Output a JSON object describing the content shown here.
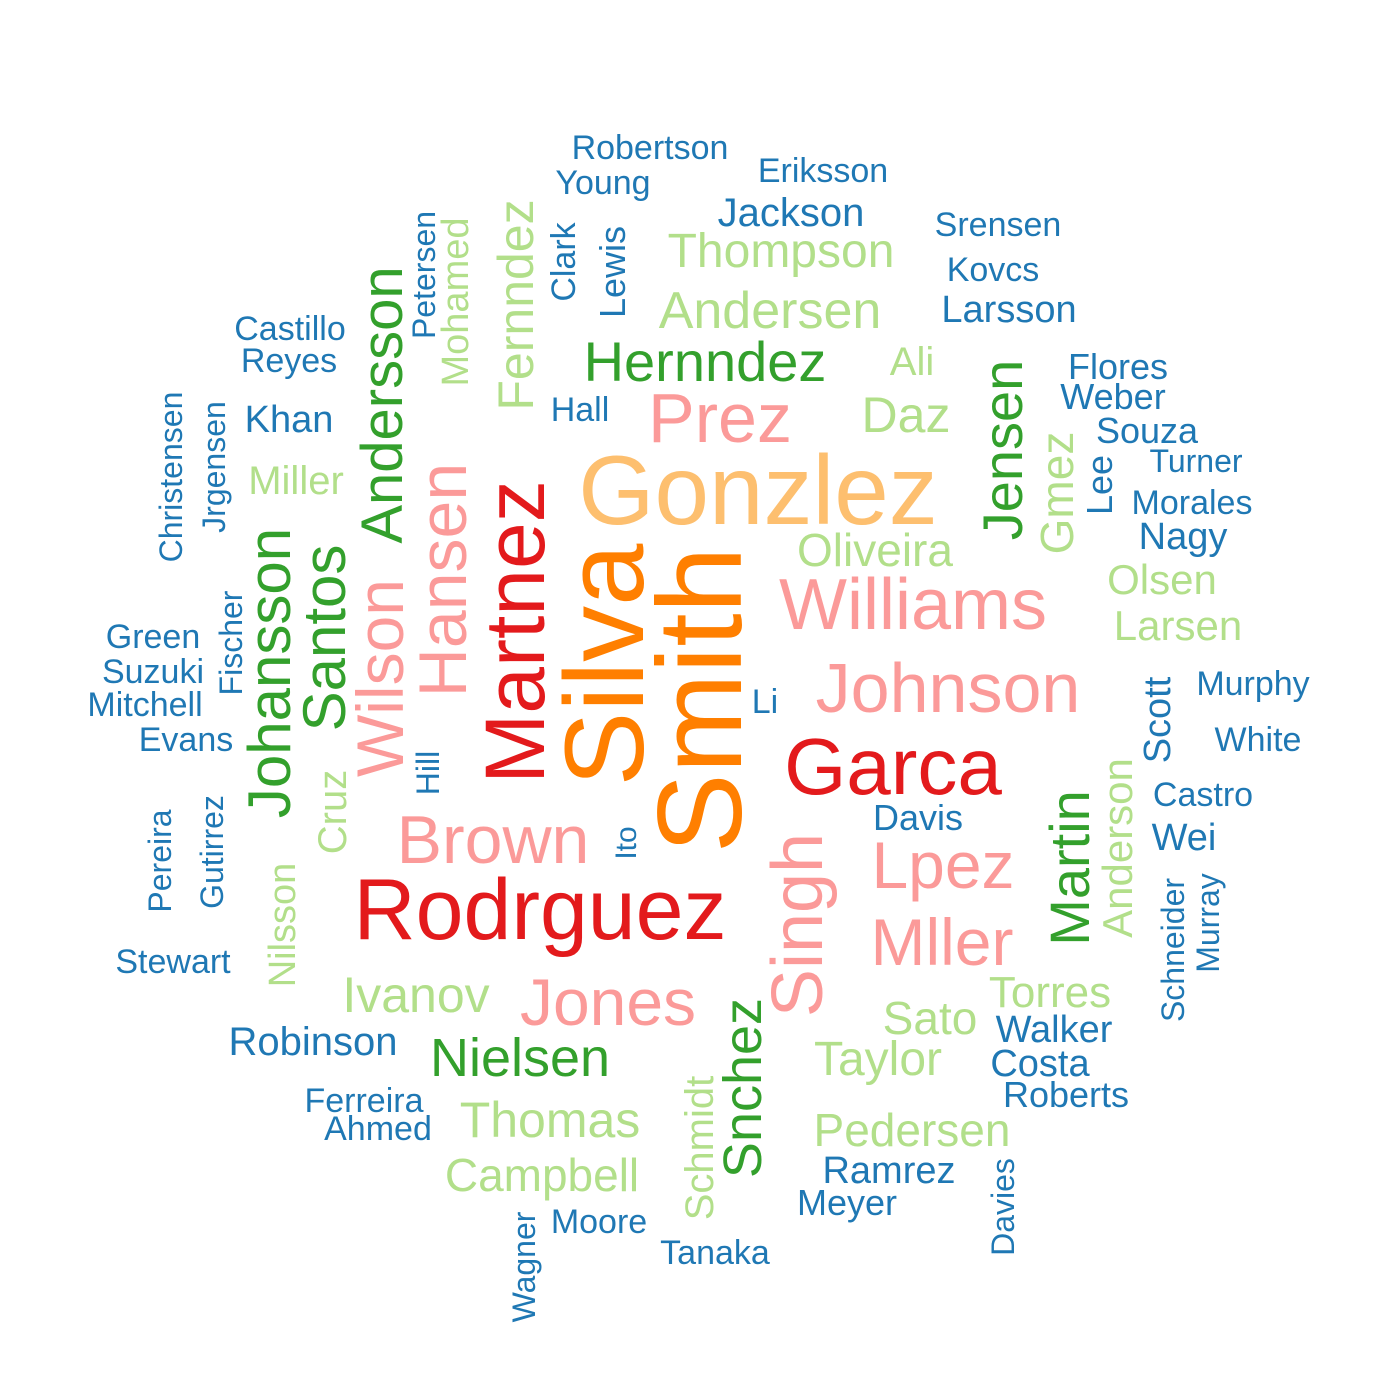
{
  "colors": {
    "dark_blue": "#1F78B4",
    "light_green": "#B2DF8A",
    "dark_green": "#33A02C",
    "pink": "#FB9A99",
    "red": "#E31A1C",
    "light_orange": "#FDBF6F",
    "orange": "#FF7F00"
  },
  "words": [
    {
      "text": "Smith",
      "color": "orange",
      "size": 120,
      "rotated": true
    },
    {
      "text": "Silva",
      "color": "orange",
      "size": 112,
      "rotated": true
    },
    {
      "text": "Gonzlez",
      "color": "light_orange",
      "size": 98,
      "rotated": false
    },
    {
      "text": "Rodrguez",
      "color": "red",
      "size": 86,
      "rotated": false
    },
    {
      "text": "Martnez",
      "color": "red",
      "size": 84,
      "rotated": true
    },
    {
      "text": "Garca",
      "color": "red",
      "size": 80,
      "rotated": false
    },
    {
      "text": "Williams",
      "color": "pink",
      "size": 72,
      "rotated": false
    },
    {
      "text": "Johnson",
      "color": "pink",
      "size": 70,
      "rotated": false
    },
    {
      "text": "Singh",
      "color": "pink",
      "size": 72,
      "rotated": true
    },
    {
      "text": "Brown",
      "color": "pink",
      "size": 68,
      "rotated": false
    },
    {
      "text": "Hansen",
      "color": "pink",
      "size": 68,
      "rotated": true
    },
    {
      "text": "Wilson",
      "color": "pink",
      "size": 66,
      "rotated": true
    },
    {
      "text": "Prez",
      "color": "pink",
      "size": 70,
      "rotated": false
    },
    {
      "text": "Jones",
      "color": "pink",
      "size": 66,
      "rotated": false
    },
    {
      "text": "Lpez",
      "color": "pink",
      "size": 66,
      "rotated": false
    },
    {
      "text": "Mller",
      "color": "pink",
      "size": 66,
      "rotated": false
    },
    {
      "text": "Johansson",
      "color": "dark_green",
      "size": 60,
      "rotated": true
    },
    {
      "text": "Santos",
      "color": "dark_green",
      "size": 60,
      "rotated": true
    },
    {
      "text": "Andersson",
      "color": "dark_green",
      "size": 58,
      "rotated": true
    },
    {
      "text": "Hernndez",
      "color": "dark_green",
      "size": 56,
      "rotated": false
    },
    {
      "text": "Jensen",
      "color": "dark_green",
      "size": 56,
      "rotated": true
    },
    {
      "text": "Martin",
      "color": "dark_green",
      "size": 56,
      "rotated": true
    },
    {
      "text": "Nielsen",
      "color": "dark_green",
      "size": 54,
      "rotated": false
    },
    {
      "text": "Snchez",
      "color": "dark_green",
      "size": 54,
      "rotated": true
    },
    {
      "text": "Andersen",
      "color": "light_green",
      "size": 52,
      "rotated": false
    },
    {
      "text": "Thompson",
      "color": "light_green",
      "size": 48,
      "rotated": false
    },
    {
      "text": "Fernndez",
      "color": "light_green",
      "size": 50,
      "rotated": true
    },
    {
      "text": "Thomas",
      "color": "light_green",
      "size": 50,
      "rotated": false
    },
    {
      "text": "Ivanov",
      "color": "light_green",
      "size": 50,
      "rotated": false
    },
    {
      "text": "Daz",
      "color": "light_green",
      "size": 50,
      "rotated": false
    },
    {
      "text": "Taylor",
      "color": "light_green",
      "size": 48,
      "rotated": false
    },
    {
      "text": "Campbell",
      "color": "light_green",
      "size": 46,
      "rotated": false
    },
    {
      "text": "Oliveira",
      "color": "light_green",
      "size": 46,
      "rotated": false
    },
    {
      "text": "Pedersen",
      "color": "light_green",
      "size": 46,
      "rotated": false
    },
    {
      "text": "Gmez",
      "color": "light_green",
      "size": 46,
      "rotated": true
    },
    {
      "text": "Sato",
      "color": "light_green",
      "size": 46,
      "rotated": false
    },
    {
      "text": "Torres",
      "color": "light_green",
      "size": 44,
      "rotated": false
    },
    {
      "text": "Larsen",
      "color": "light_green",
      "size": 42,
      "rotated": false
    },
    {
      "text": "Olsen",
      "color": "light_green",
      "size": 42,
      "rotated": false
    },
    {
      "text": "Anderson",
      "color": "light_green",
      "size": 42,
      "rotated": true
    },
    {
      "text": "Mohamed",
      "color": "light_green",
      "size": 38,
      "rotated": true
    },
    {
      "text": "Miller",
      "color": "light_green",
      "size": 40,
      "rotated": false
    },
    {
      "text": "Ali",
      "color": "light_green",
      "size": 40,
      "rotated": false
    },
    {
      "text": "Cruz",
      "color": "light_green",
      "size": 40,
      "rotated": true
    },
    {
      "text": "Schmidt",
      "color": "light_green",
      "size": 40,
      "rotated": true
    },
    {
      "text": "Nilsson",
      "color": "light_green",
      "size": 38,
      "rotated": true
    },
    {
      "text": "Jackson",
      "color": "dark_blue",
      "size": 40,
      "rotated": false
    },
    {
      "text": "Robinson",
      "color": "dark_blue",
      "size": 40,
      "rotated": false
    },
    {
      "text": "Larsson",
      "color": "dark_blue",
      "size": 38,
      "rotated": false
    },
    {
      "text": "Walker",
      "color": "dark_blue",
      "size": 38,
      "rotated": false
    },
    {
      "text": "Costa",
      "color": "dark_blue",
      "size": 38,
      "rotated": false
    },
    {
      "text": "Scott",
      "color": "dark_blue",
      "size": 38,
      "rotated": true
    },
    {
      "text": "Khan",
      "color": "dark_blue",
      "size": 38,
      "rotated": false
    },
    {
      "text": "Nagy",
      "color": "dark_blue",
      "size": 38,
      "rotated": false
    },
    {
      "text": "Ramrez",
      "color": "dark_blue",
      "size": 38,
      "rotated": false
    },
    {
      "text": "Wei",
      "color": "dark_blue",
      "size": 38,
      "rotated": false
    },
    {
      "text": "Davis",
      "color": "dark_blue",
      "size": 36,
      "rotated": false
    },
    {
      "text": "Lewis",
      "color": "dark_blue",
      "size": 36,
      "rotated": true
    },
    {
      "text": "Roberts",
      "color": "dark_blue",
      "size": 36,
      "rotated": false
    },
    {
      "text": "Meyer",
      "color": "dark_blue",
      "size": 36,
      "rotated": false
    },
    {
      "text": "Weber",
      "color": "dark_blue",
      "size": 36,
      "rotated": false
    },
    {
      "text": "Flores",
      "color": "dark_blue",
      "size": 36,
      "rotated": false
    },
    {
      "text": "Souza",
      "color": "dark_blue",
      "size": 36,
      "rotated": false
    },
    {
      "text": "Lee",
      "color": "dark_blue",
      "size": 36,
      "rotated": true
    },
    {
      "text": "Robertson",
      "color": "dark_blue",
      "size": 34,
      "rotated": false
    },
    {
      "text": "Young",
      "color": "dark_blue",
      "size": 34,
      "rotated": false
    },
    {
      "text": "Eriksson",
      "color": "dark_blue",
      "size": 34,
      "rotated": false
    },
    {
      "text": "Srensen",
      "color": "dark_blue",
      "size": 34,
      "rotated": false
    },
    {
      "text": "Kovcs",
      "color": "dark_blue",
      "size": 34,
      "rotated": false
    },
    {
      "text": "Clark",
      "color": "dark_blue",
      "size": 34,
      "rotated": true
    },
    {
      "text": "Hall",
      "color": "dark_blue",
      "size": 34,
      "rotated": false
    },
    {
      "text": "Castillo",
      "color": "dark_blue",
      "size": 34,
      "rotated": false
    },
    {
      "text": "Reyes",
      "color": "dark_blue",
      "size": 34,
      "rotated": false
    },
    {
      "text": "Morales",
      "color": "dark_blue",
      "size": 34,
      "rotated": false
    },
    {
      "text": "Evans",
      "color": "dark_blue",
      "size": 34,
      "rotated": false
    },
    {
      "text": "Green",
      "color": "dark_blue",
      "size": 34,
      "rotated": false
    },
    {
      "text": "Suzuki",
      "color": "dark_blue",
      "size": 34,
      "rotated": false
    },
    {
      "text": "Mitchell",
      "color": "dark_blue",
      "size": 34,
      "rotated": false
    },
    {
      "text": "Stewart",
      "color": "dark_blue",
      "size": 34,
      "rotated": false
    },
    {
      "text": "Ferreira",
      "color": "dark_blue",
      "size": 34,
      "rotated": false
    },
    {
      "text": "Ahmed",
      "color": "dark_blue",
      "size": 34,
      "rotated": false
    },
    {
      "text": "Moore",
      "color": "dark_blue",
      "size": 34,
      "rotated": false
    },
    {
      "text": "Tanaka",
      "color": "dark_blue",
      "size": 34,
      "rotated": false
    },
    {
      "text": "Murphy",
      "color": "dark_blue",
      "size": 34,
      "rotated": false
    },
    {
      "text": "White",
      "color": "dark_blue",
      "size": 34,
      "rotated": false
    },
    {
      "text": "Castro",
      "color": "dark_blue",
      "size": 34,
      "rotated": false
    },
    {
      "text": "Li",
      "color": "dark_blue",
      "size": 34,
      "rotated": false
    },
    {
      "text": "Turner",
      "color": "dark_blue",
      "size": 32,
      "rotated": false
    },
    {
      "text": "Petersen",
      "color": "dark_blue",
      "size": 32,
      "rotated": true
    },
    {
      "text": "Christensen",
      "color": "dark_blue",
      "size": 32,
      "rotated": true
    },
    {
      "text": "Jrgensen",
      "color": "dark_blue",
      "size": 32,
      "rotated": true
    },
    {
      "text": "Fischer",
      "color": "dark_blue",
      "size": 32,
      "rotated": true
    },
    {
      "text": "Pereira",
      "color": "dark_blue",
      "size": 32,
      "rotated": true
    },
    {
      "text": "Gutirrez",
      "color": "dark_blue",
      "size": 32,
      "rotated": true
    },
    {
      "text": "Hill",
      "color": "dark_blue",
      "size": 32,
      "rotated": true
    },
    {
      "text": "Ito",
      "color": "dark_blue",
      "size": 30,
      "rotated": true
    },
    {
      "text": "Schneider",
      "color": "dark_blue",
      "size": 32,
      "rotated": true
    },
    {
      "text": "Murray",
      "color": "dark_blue",
      "size": 32,
      "rotated": true
    },
    {
      "text": "Davies",
      "color": "dark_blue",
      "size": 32,
      "rotated": true
    },
    {
      "text": "Wagner",
      "color": "dark_blue",
      "size": 32,
      "rotated": true
    }
  ]
}
